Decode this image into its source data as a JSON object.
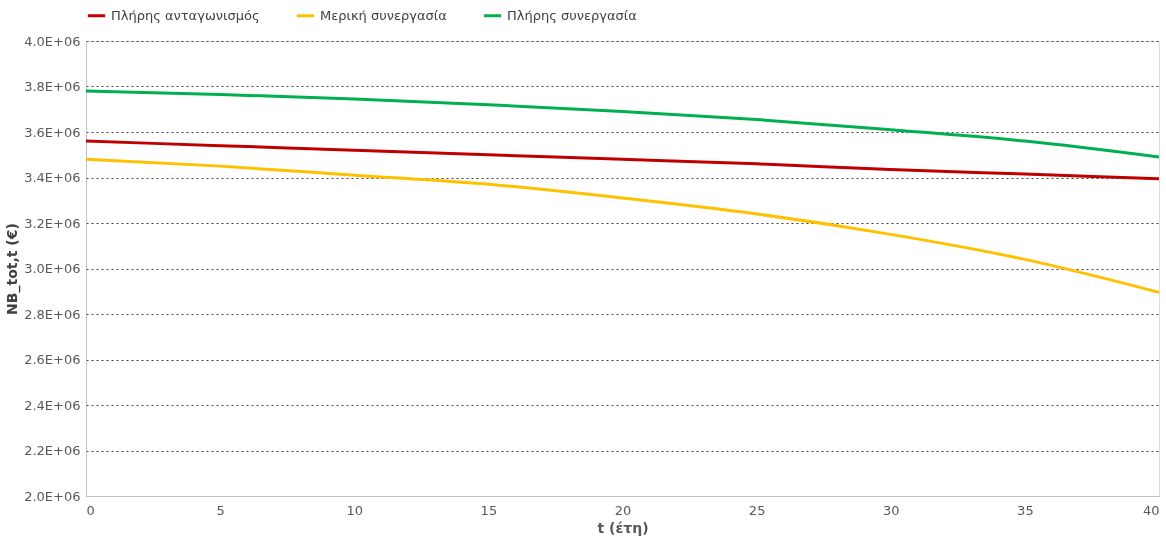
{
  "chart_data": {
    "type": "line",
    "xlabel": "t (έτη)",
    "ylabel": "NB_tot,t (€)",
    "x": [
      0,
      5,
      10,
      15,
      20,
      25,
      30,
      35,
      40
    ],
    "series": [
      {
        "name": "Πλήρης ανταγωνισμός",
        "color": "#c00000",
        "values": [
          3560000,
          3540000,
          3520000,
          3500000,
          3480000,
          3460000,
          3435000,
          3415000,
          3395000
        ]
      },
      {
        "name": "Μερική συνεργασία",
        "color": "#ffc000",
        "values": [
          3480000,
          3450000,
          3410000,
          3370000,
          3310000,
          3240000,
          3150000,
          3040000,
          2895000
        ]
      },
      {
        "name": "Πλήρης συνεργασία",
        "color": "#00b050",
        "values": [
          3780000,
          3765000,
          3745000,
          3720000,
          3690000,
          3655000,
          3610000,
          3560000,
          3490000
        ]
      }
    ],
    "xlim": [
      0,
      40
    ],
    "xticks": [
      0,
      5,
      10,
      15,
      20,
      25,
      30,
      35,
      40
    ],
    "ylim": [
      2000000,
      4000000
    ],
    "yticks": [
      {
        "value": 2000000,
        "label": "2.0E+06"
      },
      {
        "value": 2200000,
        "label": "2.2E+06"
      },
      {
        "value": 2400000,
        "label": "2.4E+06"
      },
      {
        "value": 2600000,
        "label": "2.6E+06"
      },
      {
        "value": 2800000,
        "label": "2.8E+06"
      },
      {
        "value": 3000000,
        "label": "3.0E+06"
      },
      {
        "value": 3200000,
        "label": "3.2E+06"
      },
      {
        "value": 3400000,
        "label": "3.4E+06"
      },
      {
        "value": 3600000,
        "label": "3.6E+06"
      },
      {
        "value": 3800000,
        "label": "3.8E+06"
      },
      {
        "value": 4000000,
        "label": "4.0E+06"
      }
    ],
    "grid": "y",
    "legend": "top",
    "marker": "none",
    "line_style": "solid"
  }
}
